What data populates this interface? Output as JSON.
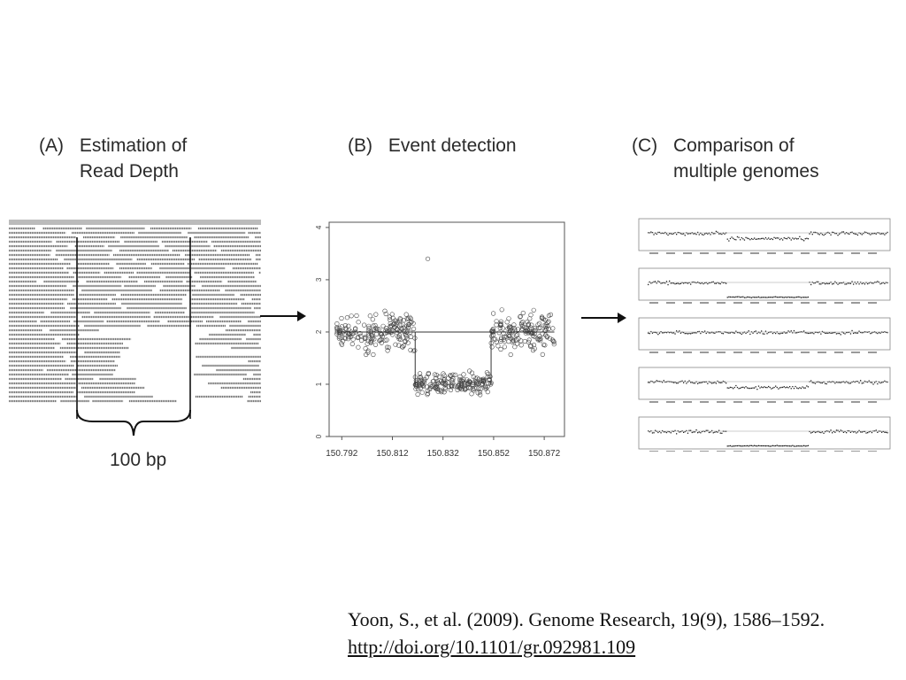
{
  "panels": {
    "a": {
      "label": "(A)",
      "line1": "Estimation of",
      "line2": "Read Depth",
      "bracket_label": "100 bp"
    },
    "b": {
      "label": "(B)",
      "line1": "Event detection"
    },
    "c": {
      "label": "(C)",
      "line1": "Comparison of",
      "line2": "multiple genomes"
    }
  },
  "citation": {
    "text": "Yoon, S., et al. (2009). Genome Research, 19(9), 1586–1592.",
    "doi": "http://doi.org/10.1101/gr.092981.109"
  },
  "chart_data": {
    "type": "scatter",
    "x_ticks": [
      "150.792",
      "150.812",
      "150.832",
      "150.852",
      "150.872"
    ],
    "y_ticks": [
      "0",
      "1",
      "2",
      "3",
      "4"
    ],
    "xlim": [
      150.787,
      150.88
    ],
    "ylim": [
      0,
      4.1
    ],
    "segments": [
      {
        "x_start": 150.79,
        "x_end": 150.821,
        "level": 2.0
      },
      {
        "x_start": 150.821,
        "x_end": 150.851,
        "level": 1.0
      },
      {
        "x_start": 150.851,
        "x_end": 150.876,
        "level": 2.0
      }
    ],
    "fitted_line": [
      {
        "x_start": 150.79,
        "x_end": 150.821,
        "level": 2.0
      },
      {
        "x_start": 150.821,
        "x_end": 150.851,
        "level": 2.0
      },
      {
        "x_start": 150.851,
        "x_end": 150.876,
        "level": 2.0
      }
    ],
    "grid": false
  },
  "genome_tracks": [
    {
      "pattern": "deletion-half"
    },
    {
      "pattern": "deletion-full"
    },
    {
      "pattern": "none"
    },
    {
      "pattern": "deletion-half"
    },
    {
      "pattern": "deletion-full"
    }
  ]
}
